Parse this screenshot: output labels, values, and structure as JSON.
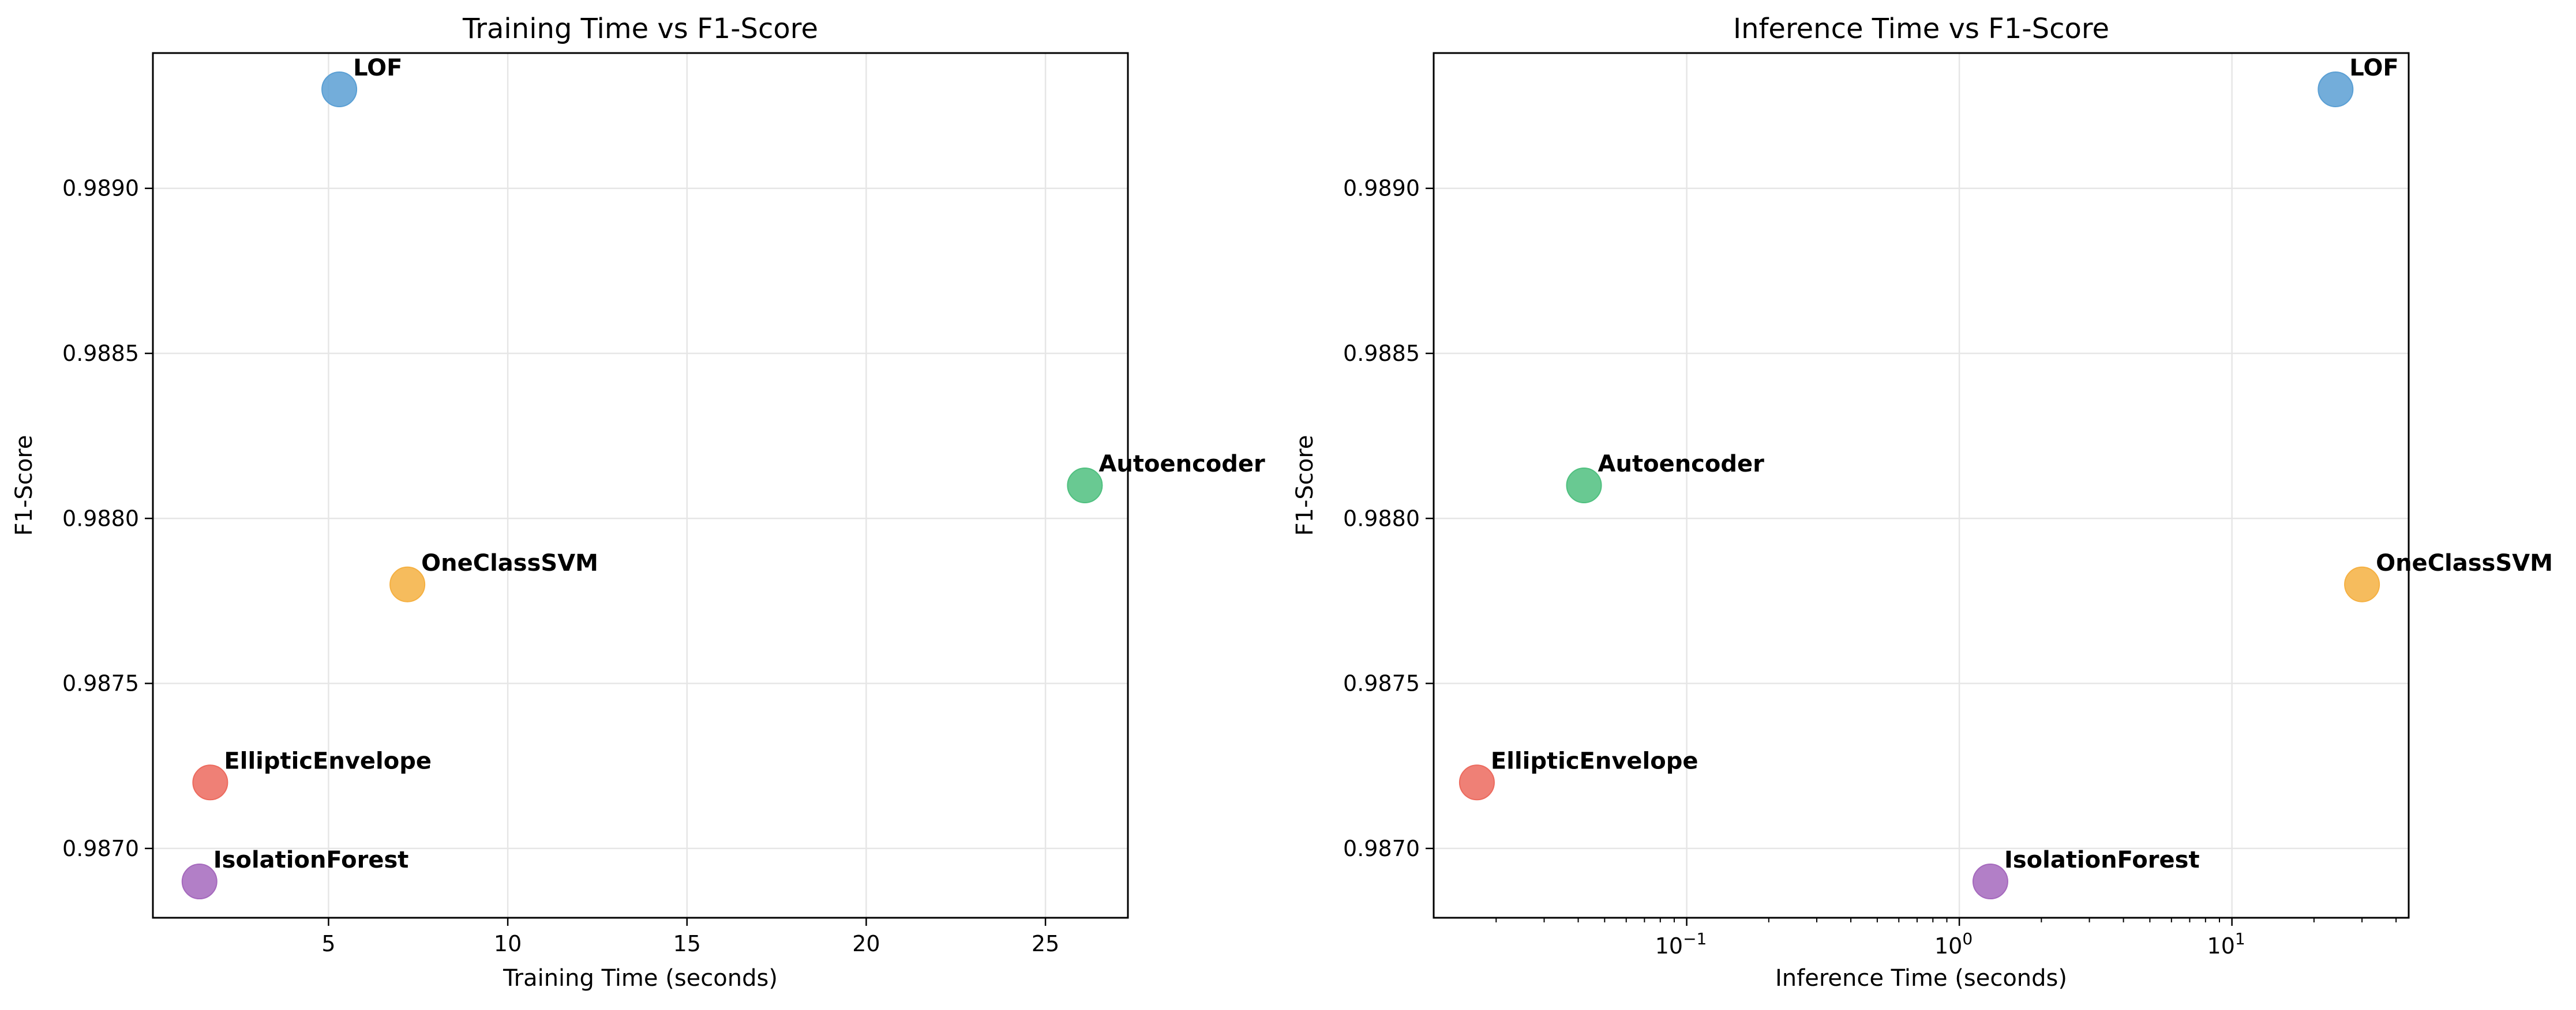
{
  "chart_data": [
    {
      "type": "scatter",
      "title": "Training Time vs F1-Score",
      "xlabel": "Training Time (seconds)",
      "ylabel": "F1-Score",
      "xscale": "linear",
      "xlim": [
        0.1,
        27.3
      ],
      "ylim": [
        0.98679,
        0.98941
      ],
      "xticks": [
        5,
        10,
        15,
        20,
        25
      ],
      "xtick_labels": [
        "5",
        "10",
        "15",
        "20",
        "25"
      ],
      "yticks": [
        0.987,
        0.9875,
        0.988,
        0.9885,
        0.989
      ],
      "ytick_labels": [
        "0.9870",
        "0.9875",
        "0.9880",
        "0.9885",
        "0.9890"
      ],
      "grid": true,
      "points": [
        {
          "name": "LOF",
          "x": 5.3,
          "y": 0.9893,
          "color": "#5a9fd4"
        },
        {
          "name": "Autoencoder",
          "x": 26.1,
          "y": 0.9881,
          "color": "#4fc07f"
        },
        {
          "name": "OneClassSVM",
          "x": 7.2,
          "y": 0.9878,
          "color": "#f5b041"
        },
        {
          "name": "EllipticEnvelope",
          "x": 1.7,
          "y": 0.9872,
          "color": "#ec6a5e"
        },
        {
          "name": "IsolationForest",
          "x": 1.4,
          "y": 0.9869,
          "color": "#a569bd"
        }
      ]
    },
    {
      "type": "scatter",
      "title": "Inference Time vs F1-Score",
      "xlabel": "Inference Time (seconds)",
      "ylabel": "F1-Score",
      "xscale": "log",
      "xlim": [
        0.0118,
        44.5
      ],
      "ylim": [
        0.98679,
        0.98941
      ],
      "xticks": [
        0.1,
        1,
        10
      ],
      "xtick_labels": [
        [
          "10",
          "−1"
        ],
        [
          "10",
          "0"
        ],
        [
          "10",
          "1"
        ]
      ],
      "yticks": [
        0.987,
        0.9875,
        0.988,
        0.9885,
        0.989
      ],
      "ytick_labels": [
        "0.9870",
        "0.9875",
        "0.9880",
        "0.9885",
        "0.9890"
      ],
      "grid": true,
      "points": [
        {
          "name": "LOF",
          "x": 24.0,
          "y": 0.9893,
          "color": "#5a9fd4"
        },
        {
          "name": "Autoencoder",
          "x": 0.042,
          "y": 0.9881,
          "color": "#4fc07f"
        },
        {
          "name": "OneClassSVM",
          "x": 30.0,
          "y": 0.9878,
          "color": "#f5b041"
        },
        {
          "name": "EllipticEnvelope",
          "x": 0.017,
          "y": 0.9872,
          "color": "#ec6a5e"
        },
        {
          "name": "IsolationForest",
          "x": 1.3,
          "y": 0.9869,
          "color": "#a569bd"
        }
      ]
    }
  ]
}
